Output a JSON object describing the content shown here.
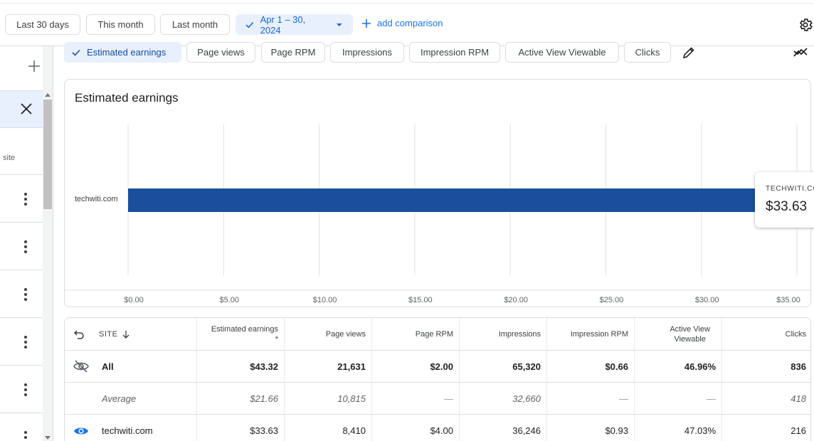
{
  "date_bar": {
    "presets": [
      "Last 30 days",
      "This month",
      "Last month"
    ],
    "selected_range": "Apr 1 – 30, 2024",
    "add_comparison": "add comparison"
  },
  "sidebar": {
    "item_label": "site"
  },
  "metrics": {
    "chips": [
      "Estimated earnings",
      "Page views",
      "Page RPM",
      "Impressions",
      "Impression RPM",
      "Active View Viewable",
      "Clicks"
    ],
    "active": "Estimated earnings"
  },
  "chart_card": {
    "title": "Estimated earnings",
    "tooltip": {
      "name": "TECHWITI.CO",
      "value": "$33.63"
    }
  },
  "chart_data": {
    "type": "bar",
    "orientation": "horizontal",
    "title": "Estimated earnings",
    "categories": [
      "techwiti.com"
    ],
    "values": [
      33.63
    ],
    "xlim": [
      0,
      35
    ],
    "x_ticks": [
      "$0.00",
      "$5.00",
      "$10.00",
      "$15.00",
      "$20.00",
      "$25.00",
      "$30.00",
      "$35.00"
    ],
    "color": "#1a4f9c",
    "grid": true
  },
  "table": {
    "headers": {
      "site": "SITE",
      "estimated_earnings": "Estimated earnings",
      "estimated_earnings_note": "*",
      "page_views": "Page views",
      "page_rpm": "Page RPM",
      "impressions": "Impressions",
      "impression_rpm": "Impression RPM",
      "active_view_1": "Active View",
      "active_view_2": "Viewable",
      "clicks": "Clicks"
    },
    "rows": [
      {
        "site": "All",
        "values": [
          "$43.32",
          "21,631",
          "$2.00",
          "65,320",
          "$0.66",
          "46.96%",
          "836"
        ]
      },
      {
        "site": "Average",
        "values": [
          "$21.66",
          "10,815",
          "—",
          "32,660",
          "—",
          "—",
          "418"
        ]
      },
      {
        "site": "techwiti.com",
        "values": [
          "$33.63",
          "8,410",
          "$4.00",
          "36,246",
          "$0.93",
          "47.03%",
          "216"
        ]
      }
    ]
  },
  "colors": {
    "accent": "#1a73e8",
    "bar": "#1a4f9c",
    "chip_active_bg": "#e8f0fe"
  }
}
